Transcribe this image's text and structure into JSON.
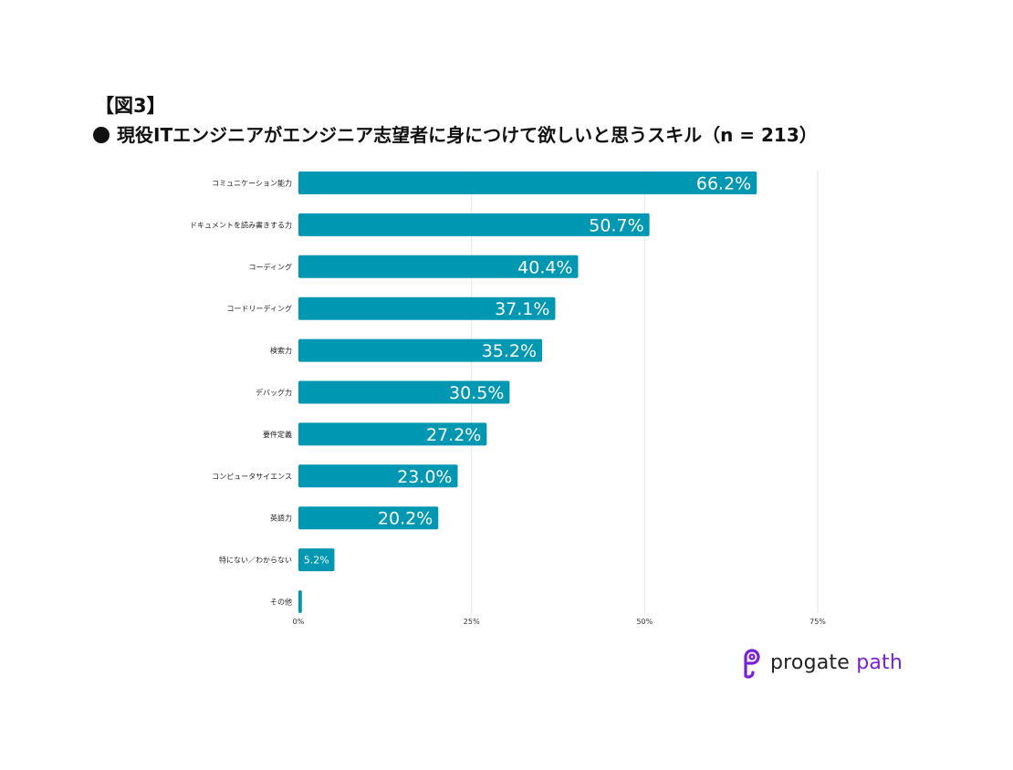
{
  "figure_label": "【図3】",
  "title": "現役ITエンジニアがエンジニア志望者に身につけて欲しいと思うスキル（n = 213）",
  "chart_data": {
    "type": "bar",
    "orientation": "horizontal",
    "title": "現役ITエンジニアがエンジニア志望者に身につけて欲しいと思うスキル（n = 213）",
    "categories": [
      "コミュニケーション能力",
      "ドキュメントを読み書きする力",
      "コーディング",
      "コードリーディング",
      "検索力",
      "デバッグ力",
      "要件定義",
      "コンピュータサイエンス",
      "英語力",
      "特にない／わからない",
      "その他"
    ],
    "values": [
      66.2,
      50.7,
      40.4,
      37.1,
      35.2,
      30.5,
      27.2,
      23.0,
      20.2,
      5.2,
      0.5
    ],
    "data_labels": [
      "66.2%",
      "50.7%",
      "40.4%",
      "37.1%",
      "35.2%",
      "30.5%",
      "27.2%",
      "23.0%",
      "20.2%",
      "5.2%",
      ""
    ],
    "xticks": [
      0,
      25,
      50,
      75
    ],
    "xtick_labels": [
      "0%",
      "25%",
      "50%",
      "75%"
    ],
    "xlim": [
      0,
      75
    ],
    "xlabel": "",
    "ylabel": "",
    "grid": true,
    "bar_color": "#0097b2",
    "grid_color": "#e6e6e6"
  },
  "logo": {
    "word1": "progate",
    "word2": "path",
    "brand_color": "#7b1fd9",
    "name": "progate path"
  }
}
